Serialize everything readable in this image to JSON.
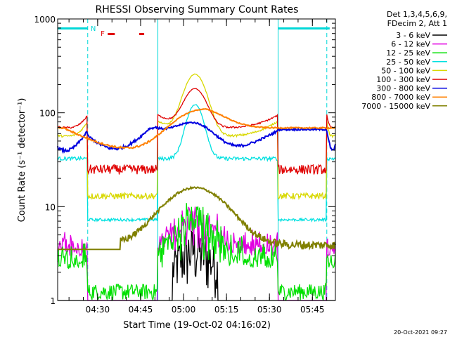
{
  "chart_data": {
    "type": "line",
    "title": "RHESSI Observing Summary Count Rates",
    "xlabel": "Start Time (19-Oct-02 04:16:02)",
    "ylabel": "Count Rate (s⁻¹ detector⁻¹)",
    "yscale": "log",
    "ylim": [
      1,
      1000
    ],
    "xlim_minutes": [
      0,
      97
    ],
    "x_ticks": [
      "04:30",
      "04:45",
      "05:00",
      "05:15",
      "05:30",
      "05:45"
    ],
    "y_ticks": [
      "1",
      "10",
      "100",
      "1000"
    ],
    "legend_header": [
      "Det 1,3,4,5,6,9,",
      "FDecim 2, Att 1"
    ],
    "legend_position": "right",
    "top_flags": [
      {
        "label": "N",
        "color": "#00d8d8"
      },
      {
        "label": "F",
        "color": "#e00000"
      }
    ],
    "timestamp": "20-Oct-2021 09:27",
    "series": [
      {
        "name": "3 - 6 keV",
        "color": "#000000"
      },
      {
        "name": "6 - 12 keV",
        "color": "#e000e0"
      },
      {
        "name": "12 - 25 keV",
        "color": "#00e000"
      },
      {
        "name": "25 - 50 keV",
        "color": "#00e0e0"
      },
      {
        "name": "50 - 100 keV",
        "color": "#d8d800"
      },
      {
        "name": "100 - 300 keV",
        "color": "#e00000"
      },
      {
        "name": "300 - 800 keV",
        "color": "#0000e0"
      },
      {
        "name": "800 - 7000 keV",
        "color": "#ff8000"
      },
      {
        "name": "7000 - 15000 keV",
        "color": "#808000"
      }
    ]
  }
}
